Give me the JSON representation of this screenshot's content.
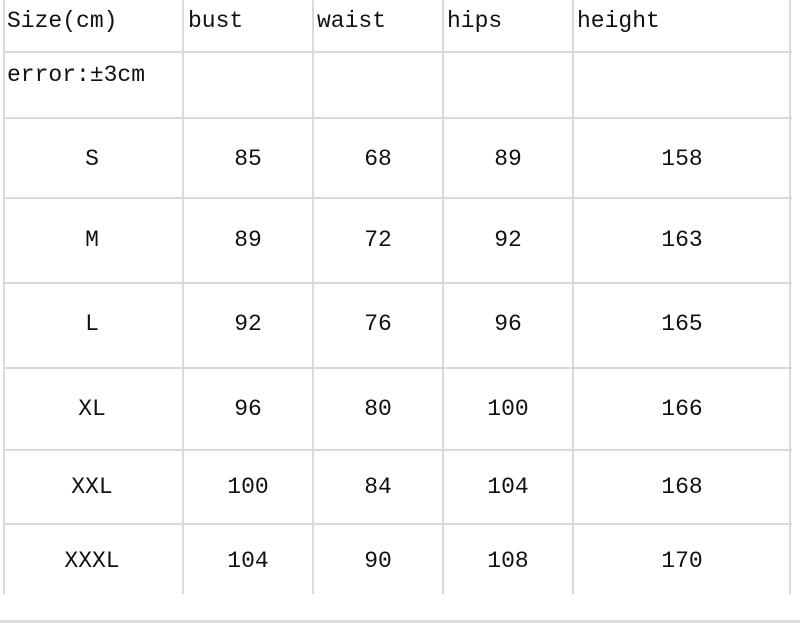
{
  "table": {
    "headers": [
      "Size(cm)",
      "bust",
      "waist",
      "hips",
      "height"
    ],
    "note": "error:±3cm",
    "rows": [
      [
        "S",
        "85",
        "68",
        "89",
        "158"
      ],
      [
        "M",
        "89",
        "72",
        "92",
        "163"
      ],
      [
        "L",
        "92",
        "76",
        "96",
        "165"
      ],
      [
        "XL",
        "96",
        "80",
        "100",
        "166"
      ],
      [
        "XXL",
        "100",
        "84",
        "104",
        "168"
      ],
      [
        "XXXL",
        "104",
        "90",
        "108",
        "170"
      ]
    ]
  }
}
